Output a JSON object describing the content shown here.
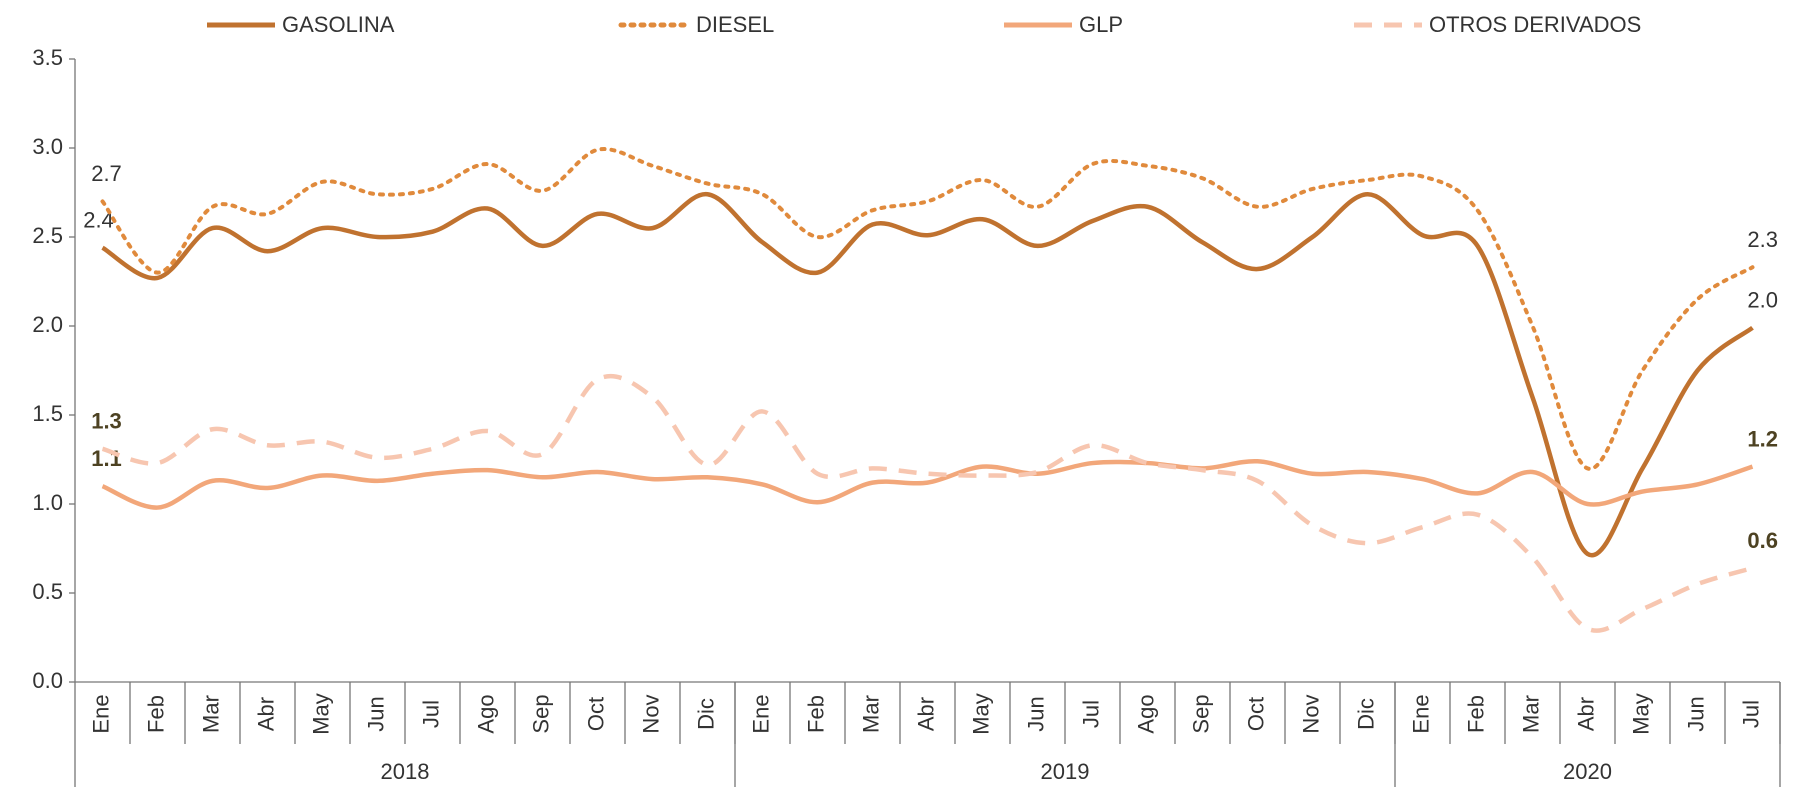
{
  "chart_data": {
    "type": "line",
    "categories": [
      "Ene",
      "Feb",
      "Mar",
      "Abr",
      "May",
      "Jun",
      "Jul",
      "Ago",
      "Sep",
      "Oct",
      "Nov",
      "Dic",
      "Ene",
      "Feb",
      "Mar",
      "Abr",
      "May",
      "Jun",
      "Jul",
      "Ago",
      "Sep",
      "Oct",
      "Nov",
      "Dic",
      "Ene",
      "Feb",
      "Mar",
      "Abr",
      "May",
      "Jun",
      "Jul"
    ],
    "years": [
      "2018",
      "2019",
      "2020"
    ],
    "ylim": [
      0,
      3.5
    ],
    "yticks": [
      {
        "value": 0,
        "label": "0.0"
      },
      0.5,
      {
        "value": 1,
        "label": "1.0"
      },
      1.5,
      {
        "value": 2,
        "label": "2.0"
      },
      2.5,
      {
        "value": 3,
        "label": "3.0"
      },
      3.5
    ],
    "legend": "top",
    "series": [
      {
        "name": "GASOLINA",
        "color": "#c0722f",
        "line_style": "solid",
        "values": [
          2.44,
          2.27,
          2.55,
          2.42,
          2.55,
          2.5,
          2.53,
          2.66,
          2.45,
          2.63,
          2.55,
          2.74,
          2.47,
          2.3,
          2.57,
          2.51,
          2.6,
          2.45,
          2.59,
          2.67,
          2.47,
          2.32,
          2.5,
          2.74,
          2.51,
          2.45,
          1.6,
          0.72,
          1.2,
          1.75,
          1.99
        ],
        "value_labels": [
          "2.4",
          null,
          null,
          null,
          null,
          null,
          null,
          null,
          null,
          null,
          null,
          null,
          null,
          null,
          null,
          null,
          null,
          null,
          null,
          null,
          null,
          null,
          null,
          null,
          null,
          null,
          null,
          null,
          null,
          null,
          "2.0"
        ]
      },
      {
        "name": "DIESEL",
        "color": "#e08a3c",
        "line_style": "dotted",
        "values": [
          2.7,
          2.3,
          2.67,
          2.63,
          2.81,
          2.74,
          2.77,
          2.91,
          2.76,
          2.99,
          2.9,
          2.8,
          2.74,
          2.5,
          2.65,
          2.7,
          2.82,
          2.67,
          2.91,
          2.9,
          2.83,
          2.67,
          2.77,
          2.82,
          2.84,
          2.65,
          2.0,
          1.2,
          1.75,
          2.15,
          2.33
        ],
        "value_labels": [
          "2.7",
          null,
          null,
          null,
          null,
          null,
          null,
          null,
          null,
          null,
          null,
          null,
          null,
          null,
          null,
          null,
          null,
          null,
          null,
          null,
          null,
          null,
          null,
          null,
          null,
          null,
          null,
          null,
          null,
          null,
          "2.3"
        ]
      },
      {
        "name": "GLP",
        "color": "#f2a77a",
        "line_style": "solid",
        "values": [
          1.1,
          0.98,
          1.13,
          1.09,
          1.16,
          1.13,
          1.17,
          1.19,
          1.15,
          1.18,
          1.14,
          1.15,
          1.11,
          1.01,
          1.12,
          1.12,
          1.21,
          1.17,
          1.23,
          1.23,
          1.2,
          1.24,
          1.17,
          1.18,
          1.14,
          1.06,
          1.18,
          1.0,
          1.07,
          1.11,
          1.21
        ],
        "value_labels": [
          "1.1",
          null,
          null,
          null,
          null,
          null,
          null,
          null,
          null,
          null,
          null,
          null,
          null,
          null,
          null,
          null,
          null,
          null,
          null,
          null,
          null,
          null,
          null,
          null,
          null,
          null,
          null,
          null,
          null,
          null,
          "1.2"
        ]
      },
      {
        "name": "OTROS DERIVADOS",
        "color": "#f7c6b0",
        "line_style": "dashed",
        "values": [
          1.31,
          1.23,
          1.42,
          1.33,
          1.35,
          1.26,
          1.31,
          1.41,
          1.28,
          1.7,
          1.6,
          1.22,
          1.52,
          1.17,
          1.2,
          1.17,
          1.16,
          1.18,
          1.33,
          1.23,
          1.19,
          1.13,
          0.88,
          0.78,
          0.87,
          0.94,
          0.7,
          0.3,
          0.41,
          0.55,
          0.64
        ],
        "value_labels": [
          "1.3",
          null,
          null,
          null,
          null,
          null,
          null,
          null,
          null,
          null,
          null,
          null,
          null,
          null,
          null,
          null,
          null,
          null,
          null,
          null,
          null,
          null,
          null,
          null,
          null,
          null,
          null,
          null,
          null,
          null,
          "0.6"
        ]
      }
    ]
  }
}
